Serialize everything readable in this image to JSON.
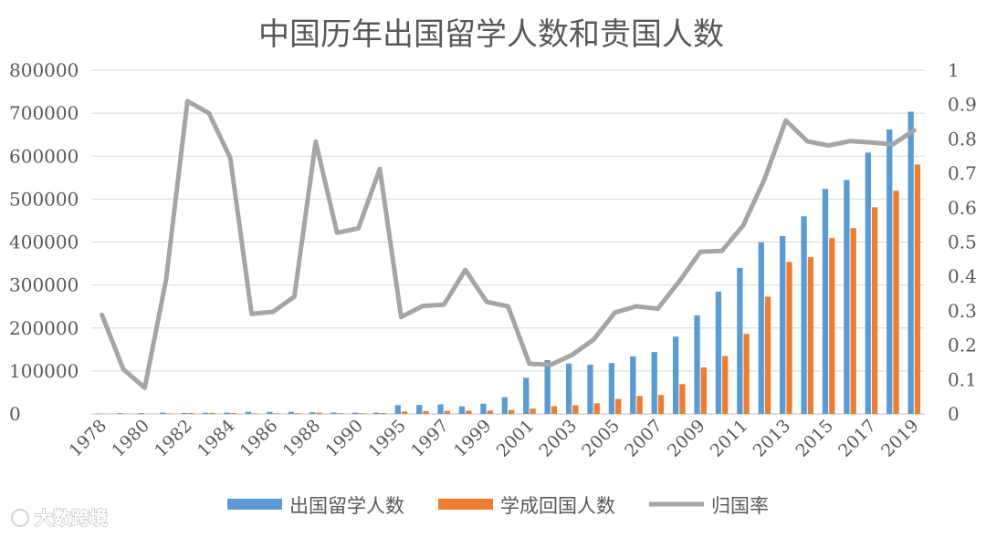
{
  "chart_data": {
    "type": "bar+line",
    "title": "中国历年出国留学人数和贵国人数",
    "categories": [
      "1978",
      "1979",
      "1980",
      "1981",
      "1982",
      "1983",
      "1984",
      "1985",
      "1986",
      "1987",
      "1988",
      "1989",
      "1990",
      "1991",
      "1995",
      "1996",
      "1997",
      "1998",
      "1999",
      "2000",
      "2001",
      "2002",
      "2003",
      "2004",
      "2005",
      "2006",
      "2007",
      "2008",
      "2009",
      "2010",
      "2011",
      "2012",
      "2013",
      "2014",
      "2015",
      "2016",
      "2017",
      "2018",
      "2019"
    ],
    "x_tick_labels": [
      "1978",
      "",
      "1980",
      "",
      "1982",
      "",
      "1984",
      "",
      "1986",
      "",
      "1988",
      "",
      "1990",
      "",
      "1995",
      "",
      "1997",
      "",
      "1999",
      "",
      "2001",
      "",
      "2003",
      "",
      "2005",
      "",
      "2007",
      "",
      "2009",
      "",
      "2011",
      "",
      "2013",
      "",
      "2015",
      "",
      "2017",
      "",
      "2019"
    ],
    "series": [
      {
        "name": "出国留学人数",
        "axis": "left",
        "kind": "bar",
        "color": "#5B9BD5",
        "values": [
          860,
          1777,
          2124,
          2922,
          2326,
          2633,
          3073,
          4888,
          4676,
          4703,
          3786,
          3329,
          2950,
          2900,
          20381,
          20905,
          22410,
          17622,
          23749,
          38989,
          83973,
          125179,
          117307,
          114682,
          118515,
          134000,
          144000,
          179800,
          229300,
          284700,
          339700,
          399600,
          413900,
          459800,
          523700,
          544500,
          608400,
          662100,
          703500
        ]
      },
      {
        "name": "学成回国人数",
        "axis": "left",
        "kind": "bar",
        "color": "#ED7D31",
        "values": [
          248,
          231,
          162,
          1143,
          2116,
          2303,
          2290,
          1424,
          1388,
          1605,
          3000,
          1753,
          1593,
          2069,
          5750,
          6570,
          7130,
          7379,
          7748,
          9121,
          12243,
          17945,
          20152,
          24726,
          34987,
          42000,
          44000,
          69300,
          108300,
          134800,
          186200,
          272900,
          353500,
          364800,
          409100,
          432500,
          480900,
          519400,
          580300
        ]
      },
      {
        "name": "归国率",
        "axis": "right",
        "kind": "line",
        "color": "#A5A5A5",
        "values": [
          0.288,
          0.13,
          0.076,
          0.391,
          0.91,
          0.875,
          0.745,
          0.291,
          0.297,
          0.341,
          0.792,
          0.527,
          0.54,
          0.713,
          0.282,
          0.314,
          0.318,
          0.419,
          0.326,
          0.313,
          0.146,
          0.143,
          0.172,
          0.216,
          0.295,
          0.313,
          0.306,
          0.385,
          0.472,
          0.474,
          0.548,
          0.683,
          0.854,
          0.793,
          0.781,
          0.794,
          0.79,
          0.784,
          0.825
        ]
      }
    ],
    "y_left": {
      "min": 0,
      "max": 800000,
      "ticks": [
        0,
        100000,
        200000,
        300000,
        400000,
        500000,
        600000,
        700000,
        800000
      ]
    },
    "y_right": {
      "min": 0,
      "max": 1,
      "ticks": [
        "0",
        "0.1",
        "0.2",
        "0.3",
        "0.4",
        "0.5",
        "0.6",
        "0.7",
        "0.8",
        "0.9",
        "1"
      ]
    },
    "grid": true,
    "legend_position": "bottom"
  },
  "watermark": "大数跨境",
  "colors": {
    "grid": "#D9D9D9",
    "axis": "#BFBFBF",
    "text": "#595959"
  }
}
